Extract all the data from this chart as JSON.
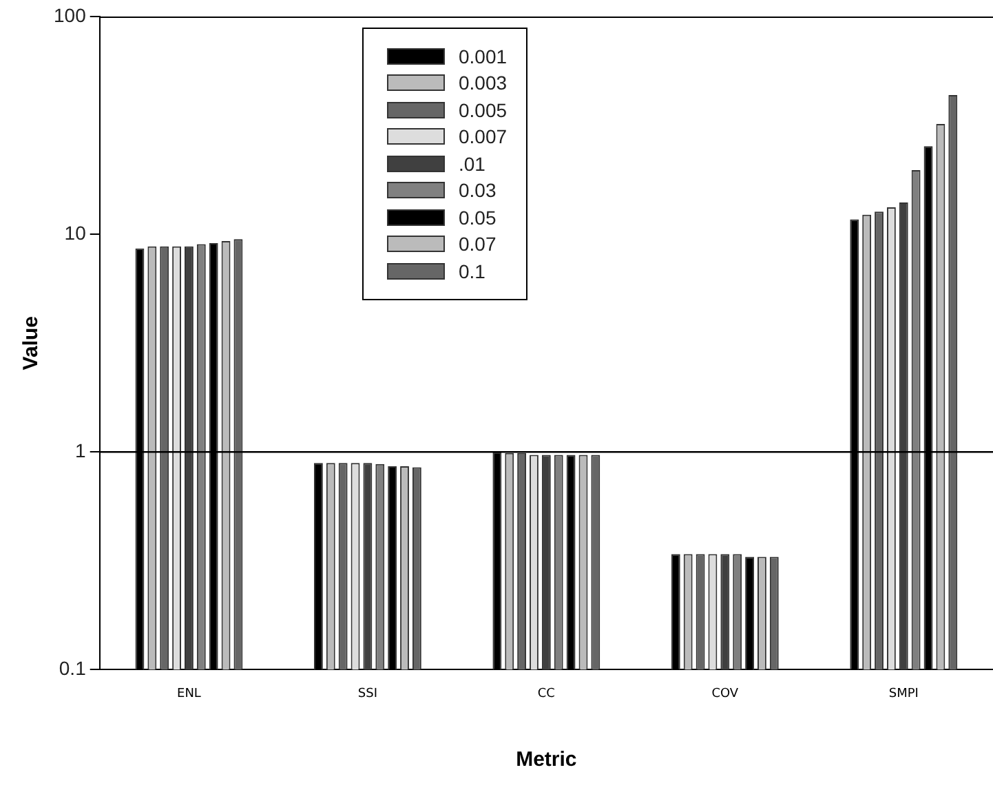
{
  "chart_data": {
    "type": "bar",
    "xlabel": "Metric",
    "ylabel": "Value",
    "categories": [
      "ENL",
      "SSI",
      "CC",
      "COV",
      "SMPI"
    ],
    "series": [
      {
        "name": "0.001",
        "color": "#000000",
        "values": [
          8.6,
          0.89,
          1.0,
          0.34,
          11.7
        ]
      },
      {
        "name": "0.003",
        "color": "#bbbbbb",
        "values": [
          8.8,
          0.89,
          0.99,
          0.34,
          12.3
        ]
      },
      {
        "name": "0.005",
        "color": "#666666",
        "values": [
          8.8,
          0.89,
          0.99,
          0.34,
          12.7
        ]
      },
      {
        "name": "0.007",
        "color": "#dddddd",
        "values": [
          8.8,
          0.89,
          0.97,
          0.34,
          13.3
        ]
      },
      {
        "name": ".01",
        "color": "#404040",
        "values": [
          8.8,
          0.89,
          0.97,
          0.34,
          14.0
        ]
      },
      {
        "name": "0.03",
        "color": "#808080",
        "values": [
          9.0,
          0.88,
          0.97,
          0.34,
          19.7
        ]
      },
      {
        "name": "0.05",
        "color": "#000000",
        "values": [
          9.1,
          0.86,
          0.97,
          0.33,
          25.4
        ]
      },
      {
        "name": "0.07",
        "color": "#bbbbbb",
        "values": [
          9.3,
          0.86,
          0.97,
          0.33,
          32.1
        ]
      },
      {
        "name": "0.1",
        "color": "#666666",
        "values": [
          9.5,
          0.85,
          0.97,
          0.33,
          43.6
        ]
      }
    ],
    "log": "y",
    "ylim": [
      0.1,
      100
    ],
    "yticks": [
      0.1,
      1,
      10,
      100
    ],
    "ref_lines": [
      {
        "axis": "y",
        "value": 1,
        "color": "#000000"
      }
    ],
    "grid": false,
    "legend": "top"
  }
}
